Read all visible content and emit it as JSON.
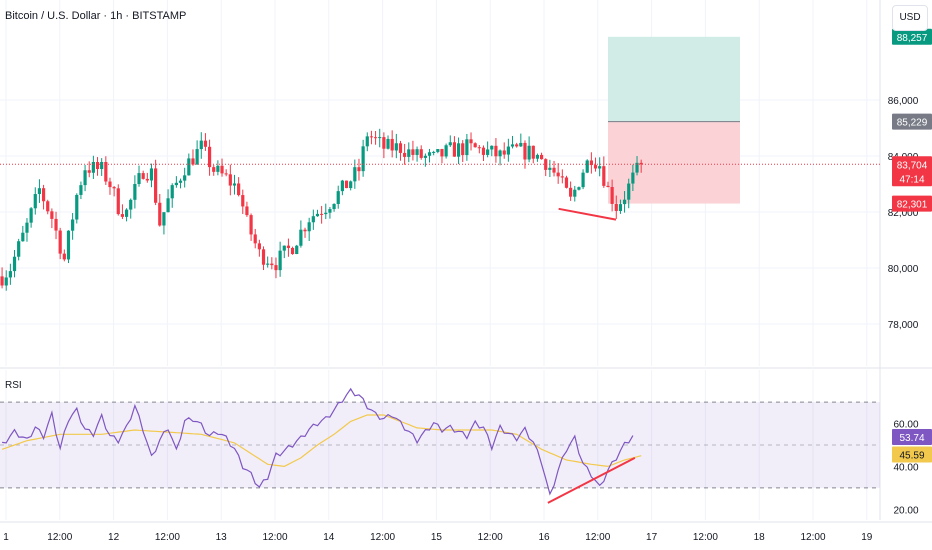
{
  "header": {
    "title": "Bitcoin / U.S. Dollar · 1h · BITSTAMP",
    "currency": "USD"
  },
  "rsi_panel": {
    "title": "RSI"
  },
  "colors": {
    "up": "#089981",
    "down": "#f23645",
    "rsi_line": "#7e57c2",
    "rsi_ma": "#f2c94c",
    "target_zone": "#d1ece6",
    "stop_zone": "#fbd3d6"
  },
  "chart_data": [
    {
      "type": "candlestick",
      "ylim": [
        76500,
        88500
      ],
      "y_ticks": [
        "86,000",
        "84,000",
        "82,000",
        "80,000",
        "78,000"
      ],
      "x_ticks": [
        "1",
        "12:00",
        "12",
        "12:00",
        "13",
        "12:00",
        "14",
        "12:00",
        "15",
        "12:00",
        "16",
        "12:00",
        "17",
        "12:00",
        "18",
        "12:00",
        "19"
      ],
      "price_labels": {
        "target": "88,257",
        "entry": "85,229",
        "last": "83,704",
        "countdown": "47:14",
        "stop": "82,301"
      },
      "position": {
        "target": 88257,
        "entry": 85229,
        "stop": 82301
      },
      "last_price": 83704,
      "anchors": [
        [
          0,
          79700
        ],
        [
          2,
          80000
        ],
        [
          6,
          81500
        ],
        [
          9,
          82800
        ],
        [
          12,
          81800
        ],
        [
          14,
          80800
        ],
        [
          15,
          80300
        ],
        [
          18,
          82600
        ],
        [
          20,
          83600
        ],
        [
          24,
          83500
        ],
        [
          26,
          83000
        ],
        [
          28,
          82200
        ],
        [
          30,
          82000
        ],
        [
          34,
          83500
        ],
        [
          36,
          83400
        ],
        [
          38,
          81600
        ],
        [
          40,
          82400
        ],
        [
          44,
          83600
        ],
        [
          48,
          84300
        ],
        [
          51,
          83500
        ],
        [
          54,
          83200
        ],
        [
          57,
          82800
        ],
        [
          59,
          81600
        ],
        [
          62,
          80500
        ],
        [
          66,
          80200
        ],
        [
          70,
          80800
        ],
        [
          74,
          81800
        ],
        [
          78,
          82200
        ],
        [
          82,
          82800
        ],
        [
          86,
          83500
        ],
        [
          88,
          84800
        ],
        [
          92,
          84300
        ],
        [
          96,
          84300
        ],
        [
          100,
          84000
        ],
        [
          104,
          83900
        ],
        [
          108,
          84200
        ],
        [
          112,
          84300
        ],
        [
          116,
          84200
        ],
        [
          120,
          84000
        ],
        [
          124,
          84200
        ],
        [
          128,
          84100
        ],
        [
          131,
          83800
        ],
        [
          134,
          83200
        ],
        [
          137,
          82400
        ],
        [
          140,
          83500
        ],
        [
          142,
          84000
        ],
        [
          144,
          83700
        ],
        [
          146,
          82800
        ],
        [
          148,
          82200
        ],
        [
          150,
          82600
        ],
        [
          152,
          83200
        ],
        [
          154,
          83700
        ]
      ]
    },
    {
      "type": "line",
      "name": "RSI",
      "ylim": [
        15,
        85
      ],
      "y_ticks": [
        "60.00",
        "40.00",
        "20.00"
      ],
      "bands": [
        70,
        50,
        30
      ],
      "value_labels": {
        "rsi": "53.74",
        "rsi_ma": "45.59"
      },
      "rsi_anchors": [
        [
          0,
          50
        ],
        [
          3,
          56
        ],
        [
          6,
          52
        ],
        [
          8,
          58
        ],
        [
          10,
          54
        ],
        [
          12,
          64
        ],
        [
          14,
          48
        ],
        [
          16,
          62
        ],
        [
          18,
          66
        ],
        [
          20,
          57
        ],
        [
          22,
          55
        ],
        [
          24,
          63
        ],
        [
          26,
          54
        ],
        [
          28,
          52
        ],
        [
          30,
          58
        ],
        [
          32,
          68
        ],
        [
          34,
          57
        ],
        [
          36,
          44
        ],
        [
          38,
          52
        ],
        [
          40,
          58
        ],
        [
          42,
          47
        ],
        [
          44,
          61
        ],
        [
          46,
          62
        ],
        [
          48,
          59
        ],
        [
          50,
          54
        ],
        [
          52,
          56
        ],
        [
          54,
          53
        ],
        [
          56,
          48
        ],
        [
          58,
          40
        ],
        [
          60,
          36
        ],
        [
          62,
          30
        ],
        [
          64,
          35
        ],
        [
          66,
          45
        ],
        [
          68,
          47
        ],
        [
          70,
          50
        ],
        [
          72,
          53
        ],
        [
          74,
          57
        ],
        [
          76,
          60
        ],
        [
          78,
          62
        ],
        [
          80,
          66
        ],
        [
          82,
          71
        ],
        [
          84,
          75
        ],
        [
          86,
          73
        ],
        [
          88,
          68
        ],
        [
          90,
          64
        ],
        [
          92,
          62
        ],
        [
          94,
          64
        ],
        [
          96,
          60
        ],
        [
          98,
          56
        ],
        [
          100,
          52
        ],
        [
          102,
          56
        ],
        [
          104,
          60
        ],
        [
          106,
          57
        ],
        [
          108,
          58
        ],
        [
          110,
          56
        ],
        [
          112,
          54
        ],
        [
          114,
          60
        ],
        [
          116,
          58
        ],
        [
          118,
          49
        ],
        [
          120,
          58
        ],
        [
          122,
          55
        ],
        [
          124,
          53
        ],
        [
          126,
          57
        ],
        [
          128,
          51
        ],
        [
          130,
          42
        ],
        [
          132,
          26
        ],
        [
          134,
          38
        ],
        [
          136,
          48
        ],
        [
          138,
          53
        ],
        [
          140,
          41
        ],
        [
          142,
          36
        ],
        [
          144,
          30
        ],
        [
          146,
          38
        ],
        [
          148,
          44
        ],
        [
          150,
          50
        ],
        [
          152,
          54
        ]
      ],
      "ma_anchors": [
        [
          0,
          48
        ],
        [
          6,
          52
        ],
        [
          14,
          55
        ],
        [
          24,
          55
        ],
        [
          32,
          57
        ],
        [
          40,
          56
        ],
        [
          48,
          55
        ],
        [
          56,
          51
        ],
        [
          60,
          46
        ],
        [
          64,
          41
        ],
        [
          68,
          40
        ],
        [
          72,
          44
        ],
        [
          76,
          50
        ],
        [
          80,
          55
        ],
        [
          84,
          61
        ],
        [
          88,
          64
        ],
        [
          92,
          64
        ],
        [
          96,
          61
        ],
        [
          100,
          58
        ],
        [
          106,
          57
        ],
        [
          112,
          57
        ],
        [
          118,
          57
        ],
        [
          124,
          55
        ],
        [
          130,
          48
        ],
        [
          136,
          43
        ],
        [
          142,
          41
        ],
        [
          146,
          40
        ],
        [
          150,
          43
        ],
        [
          154,
          45
        ]
      ]
    }
  ]
}
